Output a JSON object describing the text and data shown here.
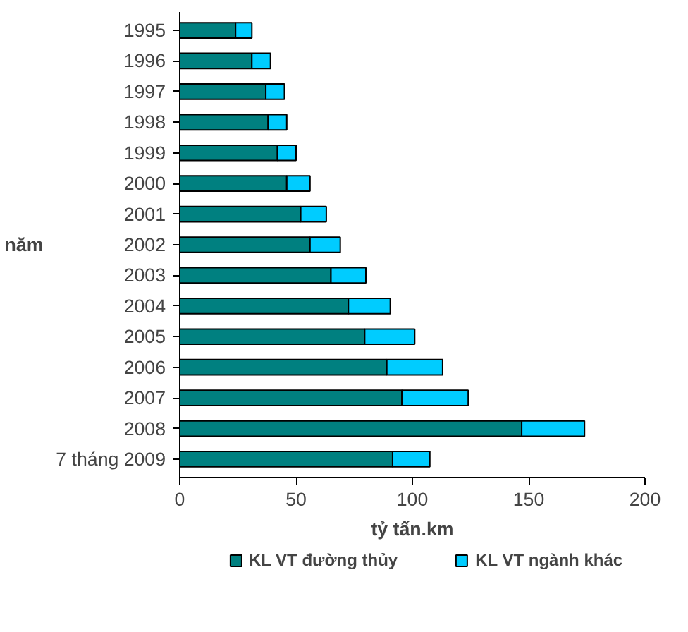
{
  "chart_data": {
    "type": "bar",
    "orientation": "horizontal",
    "stacked": true,
    "categories": [
      "1995",
      "1996",
      "1997",
      "1998",
      "1999",
      "2000",
      "2001",
      "2002",
      "2003",
      "2004",
      "2005",
      "2006",
      "2007",
      "2008",
      "7 tháng 2009"
    ],
    "series": [
      {
        "name": "KL VT đường thủy",
        "color": "#008080",
        "values": [
          24,
          31,
          37,
          38,
          42,
          46,
          52,
          56,
          65,
          72.5,
          79.5,
          89,
          95.5,
          147,
          91.5
        ]
      },
      {
        "name": "KL VT ngành khác",
        "color": "#00ccff",
        "values": [
          7,
          8,
          8,
          8,
          8,
          10,
          11,
          13,
          15,
          18,
          21.5,
          24,
          28.5,
          27,
          16
        ]
      }
    ],
    "xlabel": "tỷ tấn.km",
    "ylabel": "năm",
    "xlim": [
      0,
      200
    ],
    "xticks": [
      0,
      50,
      100,
      150,
      200
    ],
    "grid": false,
    "legend": "bottom"
  }
}
